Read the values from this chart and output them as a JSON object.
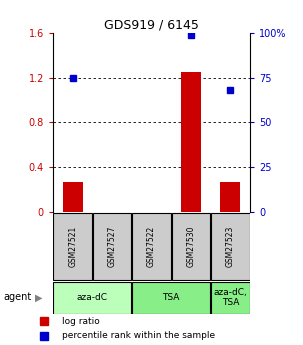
{
  "title": "GDS919 / 6145",
  "samples": [
    "GSM27521",
    "GSM27527",
    "GSM27522",
    "GSM27530",
    "GSM27523"
  ],
  "log_ratios": [
    0.27,
    0.0,
    0.0,
    1.25,
    0.27
  ],
  "percentile_ranks": [
    75.0,
    null,
    null,
    99.0,
    68.0
  ],
  "ylim_left": [
    0,
    1.6
  ],
  "ylim_right": [
    0,
    100
  ],
  "yticks_left": [
    0,
    0.4,
    0.8,
    1.2,
    1.6
  ],
  "ytick_labels_left": [
    "0",
    "0.4",
    "0.8",
    "1.2",
    "1.6"
  ],
  "yticks_right": [
    0,
    25,
    50,
    75,
    100
  ],
  "ytick_labels_right": [
    "0",
    "25",
    "50",
    "75",
    "100%"
  ],
  "bar_color": "#cc0000",
  "dot_color": "#0000cc",
  "agent_groups": [
    {
      "label": "aza-dC",
      "samples": [
        "GSM27521",
        "GSM27527"
      ],
      "color": "#bbffbb"
    },
    {
      "label": "TSA",
      "samples": [
        "GSM27522",
        "GSM27530"
      ],
      "color": "#88ee88"
    },
    {
      "label": "aza-dC,\nTSA",
      "samples": [
        "GSM27523"
      ],
      "color": "#88ee88"
    }
  ],
  "legend_bar_label": "log ratio",
  "legend_dot_label": "percentile rank within the sample",
  "agent_label": "agent",
  "background_color": "#ffffff",
  "plot_bg_color": "#ffffff",
  "grid_color": "#000000",
  "sample_box_color": "#cccccc"
}
